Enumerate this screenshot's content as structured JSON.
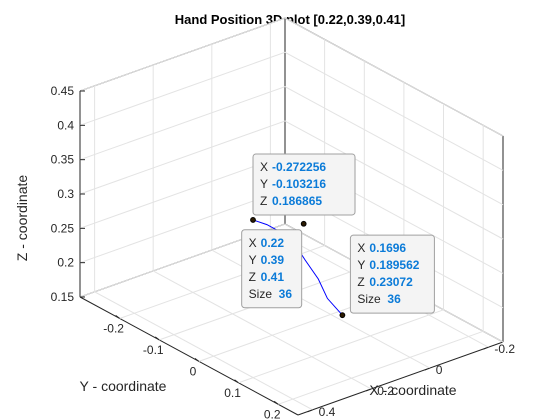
{
  "chart_data": {
    "type": "line",
    "title": "Hand Position 3D plot [0.22,0.39,0.41]",
    "xlabel": "X - coordinate",
    "ylabel": "Y - coordinate",
    "zlabel": "Z - coordinate",
    "xlim": [
      -0.3,
      0.25
    ],
    "ylim": [
      -0.25,
      0.45
    ],
    "zlim": [
      0.15,
      0.45
    ],
    "xticks": [
      "-0.2",
      "-0.1",
      "0",
      "0.1",
      "0.2"
    ],
    "yticks": [
      "-0.2",
      "0",
      "0.2",
      "0.4"
    ],
    "zticks": [
      "0.15",
      "0.2",
      "0.25",
      "0.3",
      "0.35",
      "0.4",
      "0.45"
    ],
    "grid": true,
    "line_color": "#0000ff",
    "series": [
      {
        "x": [
          -0.272256,
          -0.22,
          -0.15,
          -0.08,
          -0.02,
          0.05,
          0.11,
          0.1696
        ],
        "y": [
          -0.103216,
          -0.08,
          -0.04,
          0.01,
          0.06,
          0.11,
          0.16,
          0.189562
        ],
        "z": [
          0.186865,
          0.2,
          0.215,
          0.226,
          0.232,
          0.234,
          0.232,
          0.23072
        ]
      }
    ],
    "markers": [
      {
        "x": 0.22,
        "y": 0.39,
        "z": 0.41
      },
      {
        "x": 0.1696,
        "y": 0.189562,
        "z": 0.23072
      },
      {
        "x": -0.272256,
        "y": -0.103216,
        "z": 0.186865
      }
    ],
    "datatips": [
      {
        "rows": [
          [
            "X",
            "0.22"
          ],
          [
            "Y",
            "0.39"
          ],
          [
            "Z",
            "0.41"
          ],
          [
            "Size",
            "36"
          ]
        ]
      },
      {
        "rows": [
          [
            "X",
            "0.1696"
          ],
          [
            "Y",
            "0.189562"
          ],
          [
            "Z",
            "0.23072"
          ],
          [
            "Size",
            "36"
          ]
        ]
      },
      {
        "rows": [
          [
            "X",
            "-0.272256"
          ],
          [
            "Y",
            "-0.103216"
          ],
          [
            "Z",
            "0.186865"
          ]
        ]
      }
    ]
  }
}
